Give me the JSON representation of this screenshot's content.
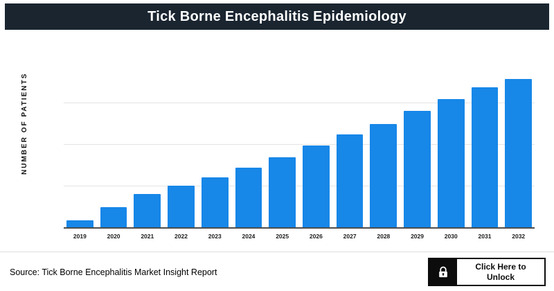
{
  "header": {
    "title": "Tick Borne Encephalitis Epidemiology",
    "bg": "#1a2530"
  },
  "chart_data": {
    "type": "bar",
    "title": "Tick Borne Encephalitis Epidemiology",
    "categories": [
      "2019",
      "2020",
      "2021",
      "2022",
      "2023",
      "2024",
      "2025",
      "2026",
      "2027",
      "2028",
      "2029",
      "2030",
      "2031",
      "2032"
    ],
    "values": [
      4,
      12,
      20,
      25,
      30,
      36,
      42,
      49,
      56,
      62,
      70,
      77,
      84,
      89
    ],
    "xlabel": "",
    "ylabel": "NUMBER OF PATIENTS",
    "ylim": [
      0,
      100
    ],
    "grid": true,
    "legend": "none",
    "bar_color": "#1787e8",
    "note": "y-axis has no numeric tick labels; values are relative percentages of axis height estimated from bar pixels"
  },
  "footer": {
    "source": "Source: Tick Borne Encephalitis Market Insight Report",
    "unlock": {
      "line1": "Click Here to",
      "line2": "Unlock",
      "icon": "lock-icon"
    }
  }
}
